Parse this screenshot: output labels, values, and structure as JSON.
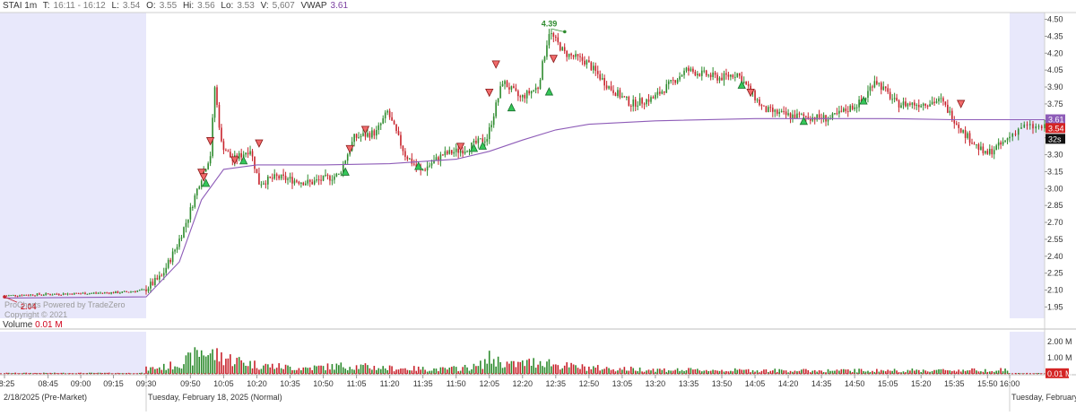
{
  "header": {
    "symbol": "STAI 1m",
    "time_label": "T:",
    "time_value": "16:11 - 16:12",
    "low_label": "L:",
    "low_value": "3.54",
    "open_label": "O:",
    "open_value": "3.55",
    "hi_label": "Hi:",
    "hi_value": "3.56",
    "lo_label": "Lo:",
    "lo_value": "3.53",
    "vol_label": "V:",
    "vol_value": "5,607",
    "vwap_label": "VWAP",
    "vwap_value": "3.61"
  },
  "watermark": {
    "line1": "ProCharts Powered by TradeZero",
    "line2": "Copyright © 2021"
  },
  "volume_header": {
    "label": "Volume",
    "value": "0.01 M"
  },
  "colors": {
    "up": "#2e8b2e",
    "down": "#c8232c",
    "vwap": "#8e5cb8",
    "extended_bg": "#e8e8fb",
    "grid": "#e6e6e6",
    "last_price_bg": "#d42424",
    "vwap_tag_bg": "#8e5cb8",
    "timer_bg": "#111111"
  },
  "chart_data": [
    {
      "type": "candlestick",
      "title": "STAI 1m",
      "ylim": [
        1.85,
        4.56
      ],
      "ytick_labels": [
        "1.95",
        "2.10",
        "2.25",
        "2.40",
        "2.55",
        "2.70",
        "2.85",
        "3.00",
        "3.15",
        "3.30",
        "3.45",
        "3.60",
        "3.75",
        "3.90",
        "4.05",
        "4.20",
        "4.35",
        "4.50"
      ],
      "yticks": [
        1.95,
        2.1,
        2.25,
        2.4,
        2.55,
        2.7,
        2.85,
        3.0,
        3.15,
        3.3,
        3.45,
        3.6,
        3.75,
        3.9,
        4.05,
        4.2,
        4.35,
        4.5
      ],
      "sessions": {
        "premarket": [
          "08:25",
          "09:30"
        ],
        "afterhours": [
          "16:00",
          "16:12"
        ]
      },
      "xtick_labels": [
        "08:25",
        "08:45",
        "09:00",
        "09:15",
        "09:30",
        "09:50",
        "10:05",
        "10:20",
        "10:35",
        "10:50",
        "11:05",
        "11:20",
        "11:35",
        "11:50",
        "12:05",
        "12:20",
        "12:35",
        "12:50",
        "13:05",
        "13:20",
        "13:35",
        "13:50",
        "14:05",
        "14:20",
        "14:35",
        "14:50",
        "15:05",
        "15:20",
        "15:35",
        "15:50",
        "16:00"
      ],
      "date_labels": [
        "2/18/2025 (Pre-Market)",
        "Tuesday, February 18, 2025 (Normal)",
        "Tuesday, February"
      ],
      "price_path": {
        "times": [
          "08:25",
          "08:40",
          "09:00",
          "09:20",
          "09:30",
          "09:38",
          "09:45",
          "09:50",
          "09:55",
          "10:00",
          "10:02",
          "10:05",
          "10:10",
          "10:18",
          "10:22",
          "10:30",
          "10:45",
          "10:58",
          "11:05",
          "11:15",
          "11:20",
          "11:28",
          "11:35",
          "11:45",
          "11:55",
          "12:05",
          "12:12",
          "12:20",
          "12:28",
          "12:33",
          "12:40",
          "12:50",
          "13:00",
          "13:10",
          "13:20",
          "13:35",
          "13:50",
          "13:58",
          "14:10",
          "14:20",
          "14:40",
          "14:55",
          "15:00",
          "15:10",
          "15:20",
          "15:30",
          "15:40",
          "15:50",
          "15:58",
          "16:05",
          "16:12"
        ],
        "prices": [
          2.05,
          2.06,
          2.07,
          2.08,
          2.1,
          2.22,
          2.5,
          2.75,
          3.05,
          3.3,
          3.9,
          3.4,
          3.25,
          3.35,
          3.05,
          3.1,
          3.05,
          3.12,
          3.45,
          3.5,
          3.68,
          3.3,
          3.15,
          3.3,
          3.35,
          3.45,
          3.95,
          3.8,
          3.9,
          4.39,
          4.2,
          4.12,
          3.9,
          3.75,
          3.8,
          4.05,
          3.98,
          4.02,
          3.7,
          3.65,
          3.62,
          3.78,
          3.97,
          3.75,
          3.75,
          3.78,
          3.5,
          3.3,
          3.4,
          3.55,
          3.54
        ]
      },
      "vwap_path": {
        "times": [
          "08:25",
          "09:30",
          "09:45",
          "09:55",
          "10:05",
          "10:20",
          "10:50",
          "11:20",
          "11:50",
          "12:05",
          "12:20",
          "12:35",
          "12:50",
          "13:20",
          "14:05",
          "14:35",
          "15:05",
          "15:35",
          "16:00",
          "16:12"
        ],
        "values": [
          2.03,
          2.04,
          2.35,
          2.9,
          3.17,
          3.21,
          3.21,
          3.22,
          3.26,
          3.33,
          3.43,
          3.52,
          3.57,
          3.6,
          3.62,
          3.62,
          3.62,
          3.61,
          3.61,
          3.61
        ]
      },
      "annotations": [
        {
          "time": "12:35",
          "price": 4.39,
          "label": "4.39",
          "kind": "high"
        },
        {
          "time": "08:25",
          "price": 2.04,
          "label": "2.04",
          "kind": "low"
        }
      ],
      "buy_markers": [
        {
          "time": "09:57",
          "price": 3.05
        },
        {
          "time": "10:14",
          "price": 3.25
        },
        {
          "time": "11:00",
          "price": 3.15
        },
        {
          "time": "11:33",
          "price": 3.2
        },
        {
          "time": "11:58",
          "price": 3.36
        },
        {
          "time": "12:02",
          "price": 3.38
        },
        {
          "time": "12:15",
          "price": 3.72
        },
        {
          "time": "12:32",
          "price": 3.86
        },
        {
          "time": "13:59",
          "price": 3.92
        },
        {
          "time": "14:27",
          "price": 3.6
        },
        {
          "time": "14:54",
          "price": 3.78
        }
      ],
      "sell_markers": [
        {
          "time": "09:55",
          "price": 3.14
        },
        {
          "time": "09:56",
          "price": 3.1
        },
        {
          "time": "09:59",
          "price": 3.42
        },
        {
          "time": "10:10",
          "price": 3.25
        },
        {
          "time": "10:21",
          "price": 3.4
        },
        {
          "time": "11:02",
          "price": 3.35
        },
        {
          "time": "11:09",
          "price": 3.52
        },
        {
          "time": "11:52",
          "price": 3.37
        },
        {
          "time": "12:05",
          "price": 3.85
        },
        {
          "time": "12:08",
          "price": 4.1
        },
        {
          "time": "12:34",
          "price": 4.15
        },
        {
          "time": "14:03",
          "price": 3.85
        },
        {
          "time": "15:38",
          "price": 3.75
        }
      ],
      "last_price": {
        "value": 3.54,
        "label": "3.54"
      },
      "vwap_last": {
        "value": 3.61,
        "label": "3.61"
      },
      "timer_label": "32s"
    },
    {
      "type": "bar",
      "title": "Volume",
      "ylim": [
        0,
        2.6
      ],
      "ytick_labels": [
        "2.00 M",
        "1.00 M"
      ],
      "yticks": [
        2.0,
        1.0
      ],
      "unit": "M",
      "last_value": {
        "value": 0.01,
        "label": "0.01 M"
      },
      "volume_profile": {
        "times": [
          "08:25",
          "09:29",
          "09:30",
          "09:40",
          "09:50",
          "09:55",
          "10:00",
          "10:10",
          "10:20",
          "10:40",
          "11:00",
          "11:20",
          "11:45",
          "12:00",
          "12:05",
          "12:15",
          "12:30",
          "12:35",
          "12:45",
          "13:00",
          "13:30",
          "14:30",
          "15:30",
          "15:59",
          "16:00",
          "16:12"
        ],
        "values": [
          0.05,
          0.05,
          0.3,
          0.45,
          0.9,
          1.4,
          1.2,
          0.85,
          0.55,
          0.35,
          0.5,
          0.35,
          0.28,
          0.45,
          0.95,
          0.55,
          0.8,
          0.55,
          0.42,
          0.32,
          0.24,
          0.2,
          0.22,
          0.25,
          0.04,
          0.04
        ]
      }
    }
  ]
}
